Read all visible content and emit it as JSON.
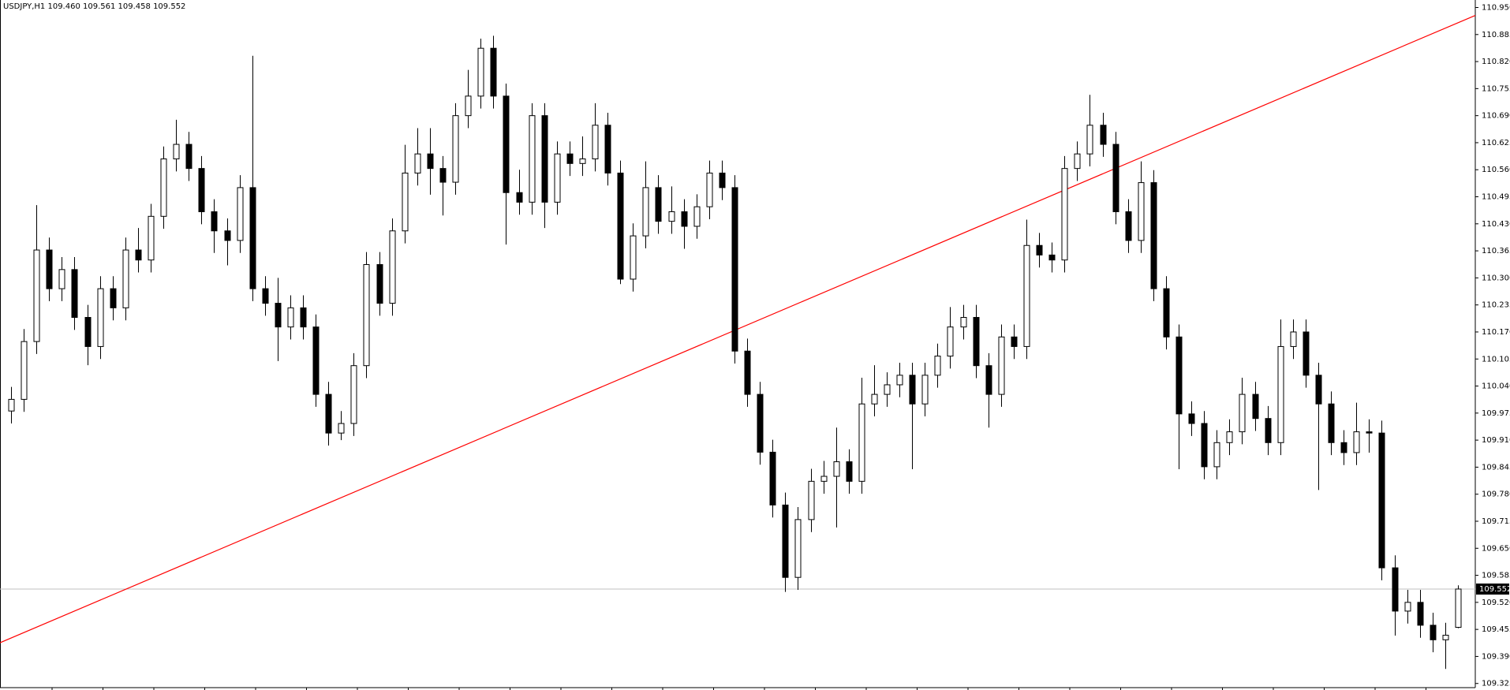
{
  "chart_data": {
    "type": "candlestick",
    "title": "USDJPY,H1  109.460 109.561 109.458 109.552",
    "up_color": "#ffffff",
    "down_color": "#000000",
    "edge_color": "#000000",
    "open": [
      109.98,
      110.008,
      110.147,
      110.367,
      110.274,
      110.32,
      110.205,
      110.135,
      110.274,
      110.228,
      110.367,
      110.343,
      110.448,
      110.586,
      110.621,
      110.563,
      110.459,
      110.413,
      110.39,
      110.517,
      110.274,
      110.239,
      110.182,
      110.228,
      110.182,
      110.02,
      109.927,
      109.95,
      110.089,
      110.332,
      110.239,
      110.413,
      110.552,
      110.598,
      110.563,
      110.53,
      110.69,
      110.737,
      110.852,
      110.737,
      110.505,
      110.482,
      110.69,
      110.482,
      110.598,
      110.575,
      110.586,
      110.667,
      110.552,
      110.297,
      110.401,
      110.517,
      110.436,
      110.459,
      110.424,
      110.471,
      110.552,
      110.517,
      110.124,
      110.02,
      109.881,
      109.754,
      109.58,
      109.719,
      109.811,
      109.823,
      109.858,
      109.811,
      109.997,
      110.02,
      110.043,
      110.066,
      109.997,
      110.066,
      110.112,
      110.182,
      110.205,
      110.089,
      110.02,
      110.158,
      110.135,
      110.378,
      110.355,
      110.343,
      110.563,
      110.598,
      110.667,
      110.621,
      110.459,
      110.39,
      110.529,
      110.274,
      110.158,
      109.973,
      109.95,
      109.846,
      109.904,
      109.93,
      110.02,
      109.962,
      109.904,
      110.135,
      110.17,
      110.066,
      109.997,
      109.904,
      109.88,
      109.93,
      109.927,
      109.603,
      109.499,
      109.52,
      109.465,
      109.43,
      109.46
    ],
    "high": [
      110.038,
      110.177,
      110.475,
      110.397,
      110.35,
      110.35,
      110.235,
      110.304,
      110.304,
      110.397,
      110.42,
      110.478,
      110.616,
      110.68,
      110.651,
      110.593,
      110.489,
      110.443,
      110.547,
      110.834,
      110.304,
      110.3,
      110.258,
      110.258,
      110.212,
      110.05,
      109.98,
      110.119,
      110.362,
      110.362,
      110.443,
      110.62,
      110.66,
      110.66,
      110.593,
      110.72,
      110.8,
      110.875,
      110.882,
      110.767,
      110.56,
      110.72,
      110.72,
      110.628,
      110.628,
      110.64,
      110.72,
      110.697,
      110.582,
      110.431,
      110.58,
      110.547,
      110.52,
      110.489,
      110.501,
      110.582,
      110.582,
      110.547,
      110.154,
      110.05,
      109.911,
      109.784,
      109.749,
      109.841,
      109.86,
      109.94,
      109.888,
      110.06,
      110.09,
      110.073,
      110.096,
      110.096,
      110.096,
      110.142,
      110.23,
      110.235,
      110.235,
      110.119,
      110.188,
      110.188,
      110.44,
      110.408,
      110.385,
      110.593,
      110.628,
      110.74,
      110.697,
      110.651,
      110.489,
      110.58,
      110.559,
      110.304,
      110.188,
      110.003,
      109.98,
      109.934,
      109.96,
      110.06,
      110.05,
      109.992,
      110.2,
      110.2,
      110.2,
      110.096,
      110.027,
      109.934,
      110.0,
      109.96,
      109.957,
      109.633,
      109.55,
      109.55,
      109.495,
      109.471,
      109.561
    ],
    "low": [
      109.95,
      109.978,
      110.117,
      110.244,
      110.244,
      110.175,
      110.09,
      110.105,
      110.198,
      110.198,
      110.313,
      110.313,
      110.418,
      110.556,
      110.533,
      110.429,
      110.36,
      110.33,
      110.36,
      110.244,
      110.209,
      110.1,
      110.152,
      110.152,
      109.99,
      109.897,
      109.91,
      109.92,
      110.059,
      110.209,
      110.209,
      110.383,
      110.522,
      110.5,
      110.45,
      110.5,
      110.66,
      110.707,
      110.707,
      110.38,
      110.452,
      110.452,
      110.42,
      110.452,
      110.545,
      110.545,
      110.556,
      110.522,
      110.285,
      110.267,
      110.371,
      110.406,
      110.406,
      110.37,
      110.394,
      110.441,
      110.487,
      110.094,
      109.99,
      109.851,
      109.724,
      109.545,
      109.55,
      109.689,
      109.781,
      109.7,
      109.781,
      109.781,
      109.967,
      109.99,
      110.013,
      109.84,
      109.967,
      110.036,
      110.082,
      110.152,
      110.059,
      109.94,
      109.99,
      110.105,
      110.105,
      110.325,
      110.313,
      110.313,
      110.533,
      110.568,
      110.591,
      110.429,
      110.36,
      110.36,
      110.244,
      110.128,
      109.84,
      109.92,
      109.816,
      109.816,
      109.874,
      109.9,
      109.932,
      109.874,
      109.874,
      110.105,
      110.036,
      109.79,
      109.874,
      109.85,
      109.85,
      109.88,
      109.573,
      109.44,
      109.469,
      109.435,
      109.4,
      109.36,
      109.458
    ],
    "close": [
      110.008,
      110.147,
      110.367,
      110.274,
      110.32,
      110.205,
      110.135,
      110.274,
      110.228,
      110.367,
      110.343,
      110.448,
      110.586,
      110.621,
      110.563,
      110.459,
      110.413,
      110.39,
      110.517,
      110.274,
      110.239,
      110.182,
      110.228,
      110.182,
      110.02,
      109.927,
      109.95,
      110.089,
      110.332,
      110.239,
      110.413,
      110.552,
      110.598,
      110.563,
      110.53,
      110.69,
      110.737,
      110.852,
      110.737,
      110.505,
      110.482,
      110.69,
      110.482,
      110.598,
      110.575,
      110.586,
      110.667,
      110.552,
      110.297,
      110.401,
      110.517,
      110.436,
      110.459,
      110.424,
      110.471,
      110.552,
      110.517,
      110.124,
      110.02,
      109.881,
      109.754,
      109.58,
      109.719,
      109.811,
      109.823,
      109.858,
      109.811,
      109.997,
      110.02,
      110.043,
      110.066,
      109.997,
      110.066,
      110.112,
      110.182,
      110.205,
      110.089,
      110.02,
      110.158,
      110.135,
      110.378,
      110.355,
      110.343,
      110.563,
      110.598,
      110.667,
      110.621,
      110.459,
      110.39,
      110.529,
      110.274,
      110.158,
      109.973,
      109.95,
      109.846,
      109.904,
      109.93,
      110.02,
      109.962,
      109.904,
      110.135,
      110.17,
      110.066,
      109.997,
      109.904,
      109.88,
      109.93,
      109.927,
      109.603,
      109.499,
      109.52,
      109.465,
      109.43,
      109.441,
      109.552
    ],
    "last_price": 109.552,
    "last_price_line_color": "#c0c0c0",
    "trendline": {
      "color": "#ff0000",
      "values": [
        109.423,
        110.931
      ]
    },
    "ylim": [
      109.315,
      110.968
    ],
    "yticks": [
      {
        "value": 110.95,
        "label": "110.950"
      },
      110.885,
      {
        "value": 110.82,
        "label": "110.820"
      },
      110.755,
      {
        "value": 110.69,
        "label": "110.690"
      },
      110.625,
      {
        "value": 110.56,
        "label": "110.560"
      },
      110.495,
      {
        "value": 110.43,
        "label": "110.430"
      },
      110.365,
      {
        "value": 110.3,
        "label": "110.300"
      },
      110.235,
      {
        "value": 110.17,
        "label": "110.170"
      },
      110.105,
      {
        "value": 110.04,
        "label": "110.040"
      },
      109.975,
      {
        "value": 109.91,
        "label": "109.910"
      },
      109.845,
      {
        "value": 109.78,
        "label": "109.780"
      },
      109.715,
      {
        "value": 109.65,
        "label": "109.650"
      },
      109.585,
      {
        "value": 109.52,
        "label": "109.520"
      },
      109.455,
      {
        "value": 109.39,
        "label": "109.390"
      },
      109.325
    ]
  }
}
